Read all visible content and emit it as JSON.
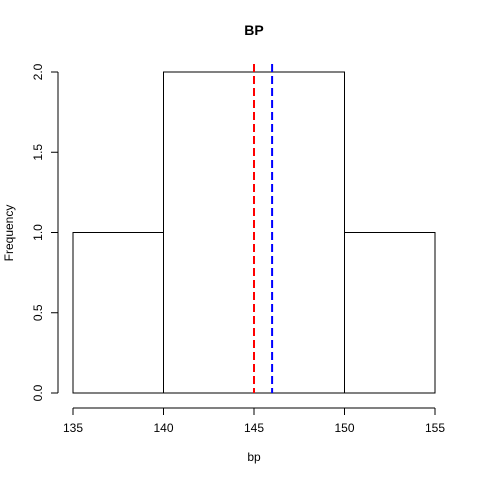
{
  "chart_data": {
    "type": "bar",
    "subtype": "histogram",
    "title": "BP",
    "xlabel": "bp",
    "ylabel": "Frequency",
    "bins": [
      {
        "from": 135,
        "to": 140,
        "count": 1
      },
      {
        "from": 140,
        "to": 145,
        "count": 2
      },
      {
        "from": 145,
        "to": 150,
        "count": 2
      },
      {
        "from": 150,
        "to": 155,
        "count": 1
      }
    ],
    "merged_boxes": [
      {
        "from": 135,
        "to": 140,
        "count": 1
      },
      {
        "from": 140,
        "to": 150,
        "count": 2
      },
      {
        "from": 150,
        "to": 155,
        "count": 1
      }
    ],
    "xlim": [
      135,
      155
    ],
    "ylim": [
      0,
      2
    ],
    "x_ticks": [
      "135",
      "140",
      "145",
      "150",
      "155"
    ],
    "y_ticks": [
      "0.0",
      "0.5",
      "1.0",
      "1.5",
      "2.0"
    ],
    "vertical_lines": [
      {
        "x": 145,
        "color": "#ff0000",
        "style": "dashed"
      },
      {
        "x": 146,
        "color": "#0000ff",
        "style": "dashed"
      }
    ],
    "grid": false,
    "legend": "none"
  }
}
